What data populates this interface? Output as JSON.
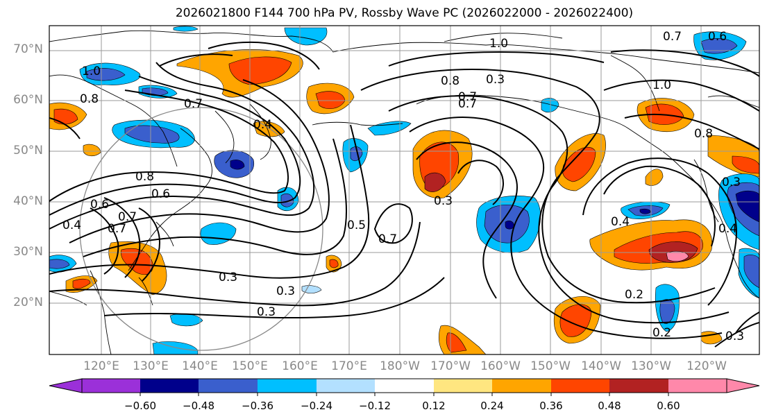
{
  "title": "2026021800 F144 700 hPa PV, Rossby Wave PC (2026022000 - 2026022400)",
  "lat_labels": [
    "70°N",
    "60°N",
    "50°N",
    "40°N",
    "30°N",
    "20°N"
  ],
  "lon_labels": [
    "120°E",
    "130°E",
    "140°E",
    "150°E",
    "160°E",
    "170°E",
    "180°W",
    "170°W",
    "160°W",
    "150°W",
    "140°W",
    "130°W",
    "120°W"
  ],
  "colorbar": {
    "ticks": [
      "−0.60",
      "−0.48",
      "−0.36",
      "−0.24",
      "−0.12",
      "0.12",
      "0.24",
      "0.36",
      "0.48",
      "0.60"
    ],
    "colors": [
      "#9b30d9",
      "#00008b",
      "#3a5fcd",
      "#00bfff",
      "#b3e0ff",
      "#ffffff",
      "#ffe680",
      "#ffa500",
      "#ff4500",
      "#b22222",
      "#ff88aa"
    ]
  },
  "contour_labels": [
    "1.0",
    "0.7",
    "0.6",
    "1.0",
    "0.8",
    "0.7",
    "0.3",
    "0.7",
    "0.4",
    "0.8",
    "0.6",
    "0.6",
    "0.4",
    "0.7",
    "0.3",
    "0.3",
    "0.3",
    "0.5",
    "0.7",
    "0.3",
    "0.4",
    "0.2",
    "0.3",
    "0.4",
    "0.2",
    "0.3",
    "1.0",
    "0.8",
    "0.8",
    "0.7",
    "0.7"
  ]
}
